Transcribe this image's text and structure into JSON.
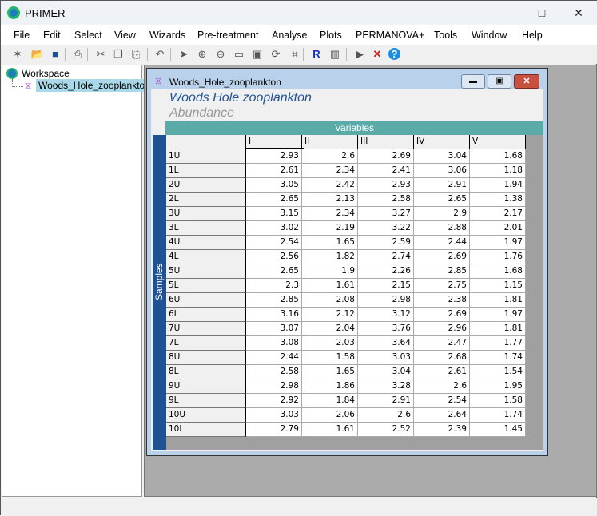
{
  "app": {
    "title": "PRIMER",
    "window_controls": [
      "minimize",
      "maximize",
      "close"
    ]
  },
  "menu": [
    "File",
    "Edit",
    "Select",
    "View",
    "Wizards",
    "Pre-treatment",
    "Analyse",
    "Plots",
    "PERMANOVA+",
    "Tools",
    "Window",
    "Help"
  ],
  "toolbar": [
    "new-icon",
    "open-icon",
    "save-icon",
    "print-icon",
    "cut-icon",
    "copy-icon",
    "paste-icon",
    "undo-icon",
    "pointer-icon",
    "zoom-in-icon",
    "zoom-out-icon",
    "label-icon",
    "select-icon",
    "rotate-icon",
    "crop-icon",
    "r-data-icon",
    "histogram-icon",
    "run-icon",
    "stop-icon",
    "help-icon"
  ],
  "tree": {
    "root": "Workspace",
    "items": [
      "Woods_Hole_zooplankton"
    ]
  },
  "child": {
    "title": "Woods_Hole_zooplankton",
    "heading": "Woods Hole zooplankton",
    "subheading": "Abundance",
    "variables_label": "Variables",
    "samples_label": "Samples"
  },
  "table": {
    "columns": [
      "I",
      "II",
      "III",
      "IV",
      "V"
    ],
    "rows": [
      {
        "label": "1U",
        "values": [
          "2.93",
          "2.6",
          "2.69",
          "3.04",
          "1.68"
        ]
      },
      {
        "label": "1L",
        "values": [
          "2.61",
          "2.34",
          "2.41",
          "3.06",
          "1.18"
        ]
      },
      {
        "label": "2U",
        "values": [
          "3.05",
          "2.42",
          "2.93",
          "2.91",
          "1.94"
        ]
      },
      {
        "label": "2L",
        "values": [
          "2.65",
          "2.13",
          "2.58",
          "2.65",
          "1.38"
        ]
      },
      {
        "label": "3U",
        "values": [
          "3.15",
          "2.34",
          "3.27",
          "2.9",
          "2.17"
        ]
      },
      {
        "label": "3L",
        "values": [
          "3.02",
          "2.19",
          "3.22",
          "2.88",
          "2.01"
        ]
      },
      {
        "label": "4U",
        "values": [
          "2.54",
          "1.65",
          "2.59",
          "2.44",
          "1.97"
        ]
      },
      {
        "label": "4L",
        "values": [
          "2.56",
          "1.82",
          "2.74",
          "2.69",
          "1.76"
        ]
      },
      {
        "label": "5U",
        "values": [
          "2.65",
          "1.9",
          "2.26",
          "2.85",
          "1.68"
        ]
      },
      {
        "label": "5L",
        "values": [
          "2.3",
          "1.61",
          "2.15",
          "2.75",
          "1.15"
        ]
      },
      {
        "label": "6U",
        "values": [
          "2.85",
          "2.08",
          "2.98",
          "2.38",
          "1.81"
        ]
      },
      {
        "label": "6L",
        "values": [
          "3.16",
          "2.12",
          "3.12",
          "2.69",
          "1.97"
        ]
      },
      {
        "label": "7U",
        "values": [
          "3.07",
          "2.04",
          "3.76",
          "2.96",
          "1.81"
        ]
      },
      {
        "label": "7L",
        "values": [
          "3.08",
          "2.03",
          "3.64",
          "2.47",
          "1.77"
        ]
      },
      {
        "label": "8U",
        "values": [
          "2.44",
          "1.58",
          "3.03",
          "2.68",
          "1.74"
        ]
      },
      {
        "label": "8L",
        "values": [
          "2.58",
          "1.65",
          "3.04",
          "2.61",
          "1.54"
        ]
      },
      {
        "label": "9U",
        "values": [
          "2.98",
          "1.86",
          "3.28",
          "2.6",
          "1.95"
        ]
      },
      {
        "label": "9L",
        "values": [
          "2.92",
          "1.84",
          "2.91",
          "2.54",
          "1.58"
        ]
      },
      {
        "label": "10U",
        "values": [
          "3.03",
          "2.06",
          "2.6",
          "2.64",
          "1.74"
        ]
      },
      {
        "label": "10L",
        "values": [
          "2.79",
          "1.61",
          "2.52",
          "2.39",
          "1.45"
        ]
      }
    ]
  },
  "colors": {
    "variables_bar": "#5aaaa8",
    "samples_bar": "#1f5294",
    "heading": "#1f5294",
    "subheading": "#999999"
  }
}
